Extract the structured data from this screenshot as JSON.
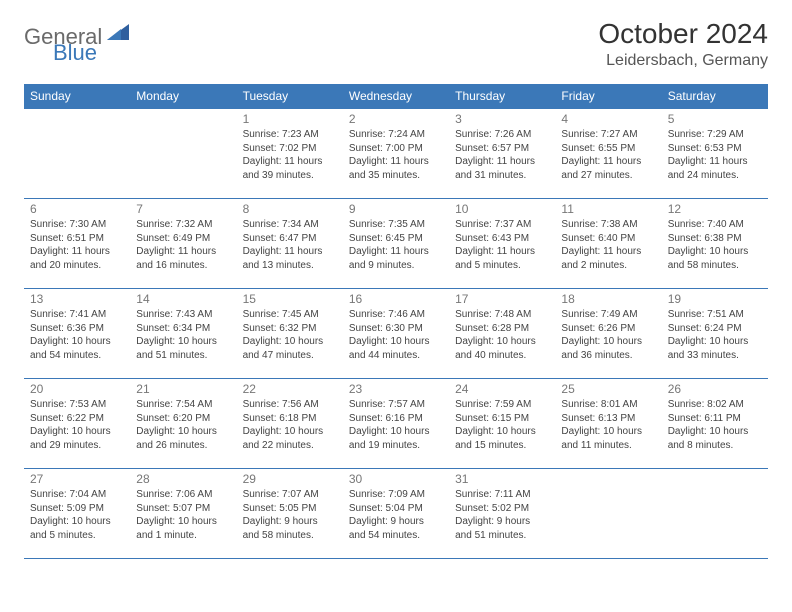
{
  "brand": {
    "text_general": "General",
    "text_blue": "Blue"
  },
  "header": {
    "title": "October 2024",
    "location": "Leidersbach, Germany"
  },
  "colors": {
    "header_bg": "#3b78b8",
    "header_fg": "#ffffff",
    "border": "#3b78b8",
    "daynum": "#777777",
    "body_text": "#444444",
    "logo_gray": "#6a6a6a",
    "logo_blue": "#3b78b8"
  },
  "calendar": {
    "day_headers": [
      "Sunday",
      "Monday",
      "Tuesday",
      "Wednesday",
      "Thursday",
      "Friday",
      "Saturday"
    ],
    "weeks": [
      [
        null,
        null,
        {
          "n": "1",
          "sunrise": "7:23 AM",
          "sunset": "7:02 PM",
          "daylight": "11 hours and 39 minutes."
        },
        {
          "n": "2",
          "sunrise": "7:24 AM",
          "sunset": "7:00 PM",
          "daylight": "11 hours and 35 minutes."
        },
        {
          "n": "3",
          "sunrise": "7:26 AM",
          "sunset": "6:57 PM",
          "daylight": "11 hours and 31 minutes."
        },
        {
          "n": "4",
          "sunrise": "7:27 AM",
          "sunset": "6:55 PM",
          "daylight": "11 hours and 27 minutes."
        },
        {
          "n": "5",
          "sunrise": "7:29 AM",
          "sunset": "6:53 PM",
          "daylight": "11 hours and 24 minutes."
        }
      ],
      [
        {
          "n": "6",
          "sunrise": "7:30 AM",
          "sunset": "6:51 PM",
          "daylight": "11 hours and 20 minutes."
        },
        {
          "n": "7",
          "sunrise": "7:32 AM",
          "sunset": "6:49 PM",
          "daylight": "11 hours and 16 minutes."
        },
        {
          "n": "8",
          "sunrise": "7:34 AM",
          "sunset": "6:47 PM",
          "daylight": "11 hours and 13 minutes."
        },
        {
          "n": "9",
          "sunrise": "7:35 AM",
          "sunset": "6:45 PM",
          "daylight": "11 hours and 9 minutes."
        },
        {
          "n": "10",
          "sunrise": "7:37 AM",
          "sunset": "6:43 PM",
          "daylight": "11 hours and 5 minutes."
        },
        {
          "n": "11",
          "sunrise": "7:38 AM",
          "sunset": "6:40 PM",
          "daylight": "11 hours and 2 minutes."
        },
        {
          "n": "12",
          "sunrise": "7:40 AM",
          "sunset": "6:38 PM",
          "daylight": "10 hours and 58 minutes."
        }
      ],
      [
        {
          "n": "13",
          "sunrise": "7:41 AM",
          "sunset": "6:36 PM",
          "daylight": "10 hours and 54 minutes."
        },
        {
          "n": "14",
          "sunrise": "7:43 AM",
          "sunset": "6:34 PM",
          "daylight": "10 hours and 51 minutes."
        },
        {
          "n": "15",
          "sunrise": "7:45 AM",
          "sunset": "6:32 PM",
          "daylight": "10 hours and 47 minutes."
        },
        {
          "n": "16",
          "sunrise": "7:46 AM",
          "sunset": "6:30 PM",
          "daylight": "10 hours and 44 minutes."
        },
        {
          "n": "17",
          "sunrise": "7:48 AM",
          "sunset": "6:28 PM",
          "daylight": "10 hours and 40 minutes."
        },
        {
          "n": "18",
          "sunrise": "7:49 AM",
          "sunset": "6:26 PM",
          "daylight": "10 hours and 36 minutes."
        },
        {
          "n": "19",
          "sunrise": "7:51 AM",
          "sunset": "6:24 PM",
          "daylight": "10 hours and 33 minutes."
        }
      ],
      [
        {
          "n": "20",
          "sunrise": "7:53 AM",
          "sunset": "6:22 PM",
          "daylight": "10 hours and 29 minutes."
        },
        {
          "n": "21",
          "sunrise": "7:54 AM",
          "sunset": "6:20 PM",
          "daylight": "10 hours and 26 minutes."
        },
        {
          "n": "22",
          "sunrise": "7:56 AM",
          "sunset": "6:18 PM",
          "daylight": "10 hours and 22 minutes."
        },
        {
          "n": "23",
          "sunrise": "7:57 AM",
          "sunset": "6:16 PM",
          "daylight": "10 hours and 19 minutes."
        },
        {
          "n": "24",
          "sunrise": "7:59 AM",
          "sunset": "6:15 PM",
          "daylight": "10 hours and 15 minutes."
        },
        {
          "n": "25",
          "sunrise": "8:01 AM",
          "sunset": "6:13 PM",
          "daylight": "10 hours and 11 minutes."
        },
        {
          "n": "26",
          "sunrise": "8:02 AM",
          "sunset": "6:11 PM",
          "daylight": "10 hours and 8 minutes."
        }
      ],
      [
        {
          "n": "27",
          "sunrise": "7:04 AM",
          "sunset": "5:09 PM",
          "daylight": "10 hours and 5 minutes."
        },
        {
          "n": "28",
          "sunrise": "7:06 AM",
          "sunset": "5:07 PM",
          "daylight": "10 hours and 1 minute."
        },
        {
          "n": "29",
          "sunrise": "7:07 AM",
          "sunset": "5:05 PM",
          "daylight": "9 hours and 58 minutes."
        },
        {
          "n": "30",
          "sunrise": "7:09 AM",
          "sunset": "5:04 PM",
          "daylight": "9 hours and 54 minutes."
        },
        {
          "n": "31",
          "sunrise": "7:11 AM",
          "sunset": "5:02 PM",
          "daylight": "9 hours and 51 minutes."
        },
        null,
        null
      ]
    ]
  },
  "labels": {
    "sunrise_prefix": "Sunrise: ",
    "sunset_prefix": "Sunset: ",
    "daylight_prefix": "Daylight: "
  }
}
